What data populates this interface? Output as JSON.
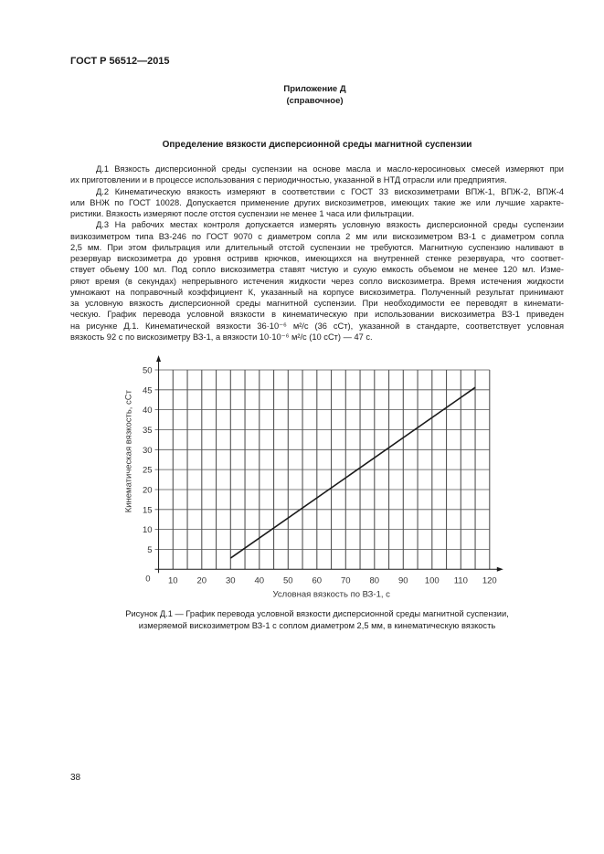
{
  "header": {
    "standard": "ГОСТ Р 56512—2015"
  },
  "annex": {
    "title": "Приложение Д",
    "note": "(справочное)"
  },
  "section_title": "Определение вязкости дисперсионной среды магнитной суспензии",
  "paragraphs": [
    [
      "Д.1 Вязкость дисперсионной среды суспензии на основе масла и масло-керосиновых смесей измеряют при",
      "их приготовлении и в процессе использования с периодичностью, указанной в НТД отрасли или предприятия."
    ],
    [
      "Д.2 Кинематическую вязкость измеряют в соответствии с ГОСТ 33 вискозиметрами ВПЖ-1, ВПЖ-2, ВПЖ-4",
      "или ВНЖ по ГОСТ 10028. Допускается применение других вискозиметров, имеющих такие же или лучшие характе-",
      "ристики. Вязкость измеряют после отстоя суспензии не менее 1 часа или фильтрации."
    ],
    [
      "Д.3 На рабочих местах контроля допускается измерять условную вязкость дисперсионной среды суспензии",
      "визкозиметром типа ВЗ-246 по ГОСТ 9070 с диаметром сопла 2 мм или вискозиметром ВЗ-1 с диаметром сопла",
      "2,5 мм. При этом фильтрация или длительный отстой суспензии не требуются. Магнитную суспензию наливают в",
      "резервуар вискозиметра до уровня остривв крючков, имеющихся на внутренней стенке резервуара, что соответ-",
      "ствует обьему 100 мл. Под сопло вискозиметра ставят чистую и сухую емкость объемом не менее 120 мл. Изме-",
      "ряют время (в секундах) непрерывного истечения жидкости через сопло вискозиметра. Время истечения жидкости",
      "умножают на поправочный коэффициент К, указанный на корпусе вискозиметра. Полученный результат принимают",
      "за условную вязкость дисперсионной среды магнитной суспензии. При необходимости ее переводят в кинемати-",
      "ческую. График перевода условной вязкости в кинематическую при использовании вискозиметра ВЗ-1 приведен",
      "на рисунке Д.1. Кинематической вязкости 36·10⁻⁶ м²/с (36 сСт), указанной в стандарте, соответствует условная",
      "вязкость 92 с по вискозиметру ВЗ-1, а вязкости 10·10⁻⁶ м²/с (10 сСт) — 47 с."
    ]
  ],
  "chart_data": {
    "type": "line",
    "xlabel": "Условная вязкость по ВЗ-1, с",
    "ylabel": "Кинематическая вязкость, сСт",
    "xlim": [
      5,
      120
    ],
    "ylim": [
      0,
      50
    ],
    "origin_label": "0",
    "x_ticks": [
      10,
      20,
      30,
      40,
      50,
      60,
      70,
      80,
      90,
      100,
      110,
      120
    ],
    "y_ticks": [
      5,
      10,
      15,
      20,
      25,
      30,
      35,
      40,
      45,
      50
    ],
    "x_grid_step": 5,
    "y_grid_step": 5,
    "grid": true,
    "series": [
      {
        "x": [
          30,
          115
        ],
        "y": [
          2.8,
          45.6
        ]
      }
    ],
    "line_color": "#1a1a1a",
    "grid_color": "#555555"
  },
  "caption": [
    "Рисунок Д.1 — График перевода условной вязкости дисперсионной среды магнитной суспензии,",
    "измеряемой вискозиметром ВЗ-1 с соплом диаметром 2,5 мм, в кинематическую вязкость"
  ],
  "page_number": "38"
}
